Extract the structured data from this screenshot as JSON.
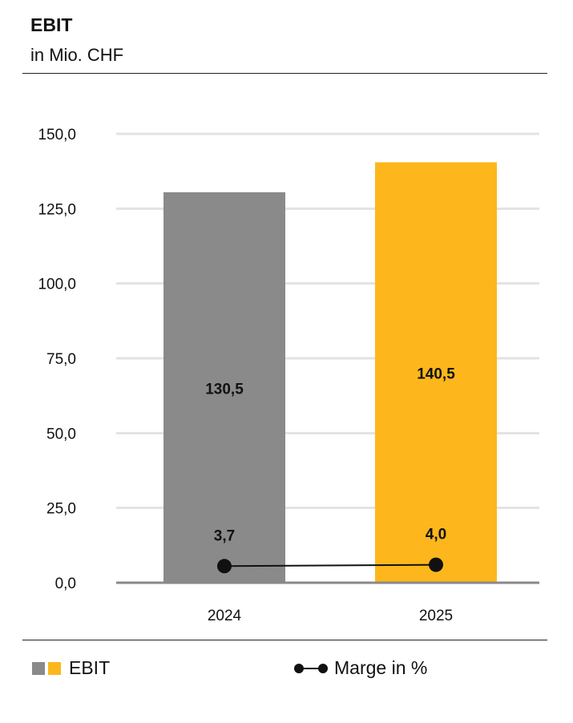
{
  "title": "EBIT",
  "subtitle": "in Mio. CHF",
  "chart_data": {
    "type": "bar",
    "title": "EBIT",
    "subtitle": "in Mio. CHF",
    "categories": [
      "2024",
      "2025"
    ],
    "series": [
      {
        "name": "EBIT",
        "values": [
          130.5,
          140.5
        ],
        "labels": [
          "130,5",
          "140,5"
        ],
        "colors": [
          "#8a8a8a",
          "#fdb71c"
        ]
      },
      {
        "name": "Marge in %",
        "type": "line",
        "values": [
          3.7,
          4.0
        ],
        "labels": [
          "3,7",
          "4,0"
        ],
        "color": "#111111"
      }
    ],
    "yticks": [
      "0,0",
      "25,0",
      "50,0",
      "75,0",
      "100,0",
      "125,0",
      "150,0"
    ],
    "ytick_values": [
      0,
      25,
      50,
      75,
      100,
      125,
      150
    ],
    "ylim": [
      0,
      150
    ],
    "y2lim": [
      0,
      100
    ],
    "grid": true,
    "legend_position": "bottom"
  },
  "legend": {
    "ebit": "EBIT",
    "margin": "Marge in %"
  }
}
